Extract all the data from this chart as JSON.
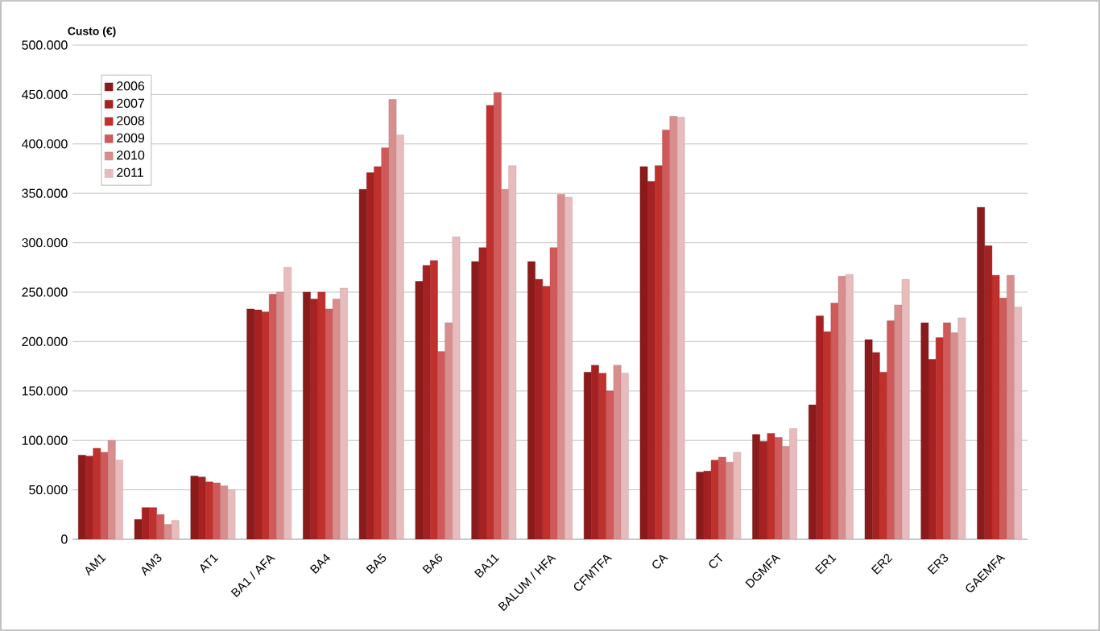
{
  "chart_data": {
    "type": "bar",
    "ylabel": "Custo (€)",
    "categories": [
      "AM1",
      "AM3",
      "AT1",
      "BA1 / AFA",
      "BA4",
      "BA5",
      "BA6",
      "BA11",
      "BALUM / HFA",
      "CFMTFA",
      "CA",
      "CT",
      "DGMFA",
      "ER1",
      "ER2",
      "ER3",
      "GAEMFA"
    ],
    "series": [
      {
        "name": "2006",
        "color": "#8b1a1a",
        "values": [
          85000,
          20000,
          64000,
          233000,
          250000,
          354000,
          261000,
          281000,
          281000,
          169000,
          377000,
          68000,
          106000,
          136000,
          202000,
          219000,
          336000
        ]
      },
      {
        "name": "2007",
        "color": "#a52122",
        "values": [
          84000,
          32000,
          63000,
          232000,
          243000,
          371000,
          277000,
          295000,
          263000,
          176000,
          362000,
          69000,
          99000,
          226000,
          189000,
          182000,
          297000
        ]
      },
      {
        "name": "2008",
        "color": "#c0302c",
        "values": [
          92000,
          32000,
          58000,
          230000,
          250000,
          377000,
          282000,
          439000,
          256000,
          168000,
          378000,
          80000,
          107000,
          210000,
          169000,
          204000,
          267000
        ]
      },
      {
        "name": "2009",
        "color": "#d05a5a",
        "values": [
          88000,
          25000,
          57000,
          248000,
          233000,
          396000,
          190000,
          452000,
          295000,
          150000,
          414000,
          83000,
          103000,
          239000,
          221000,
          219000,
          244000
        ]
      },
      {
        "name": "2010",
        "color": "#d98e8e",
        "values": [
          100000,
          15000,
          54000,
          250000,
          243000,
          445000,
          219000,
          354000,
          349000,
          176000,
          428000,
          78000,
          94000,
          266000,
          237000,
          209000,
          267000
        ]
      },
      {
        "name": "2011",
        "color": "#e8bcbc",
        "values": [
          80000,
          19000,
          50000,
          275000,
          254000,
          409000,
          306000,
          378000,
          346000,
          168000,
          427000,
          88000,
          112000,
          268000,
          263000,
          224000,
          235000
        ]
      }
    ],
    "ylim": [
      0,
      500000
    ],
    "yticks": [
      {
        "value": 0,
        "label": "0"
      },
      {
        "value": 50000,
        "label": "50.000"
      },
      {
        "value": 100000,
        "label": "100.000"
      },
      {
        "value": 150000,
        "label": "150.000"
      },
      {
        "value": 200000,
        "label": "200.000"
      },
      {
        "value": 250000,
        "label": "250.000"
      },
      {
        "value": 300000,
        "label": "300.000"
      },
      {
        "value": 350000,
        "label": "350.000"
      },
      {
        "value": 400000,
        "label": "400.000"
      },
      {
        "value": 450000,
        "label": "450.000"
      },
      {
        "value": 500000,
        "label": "500.000"
      }
    ],
    "grid": "y",
    "legend": "top left"
  }
}
